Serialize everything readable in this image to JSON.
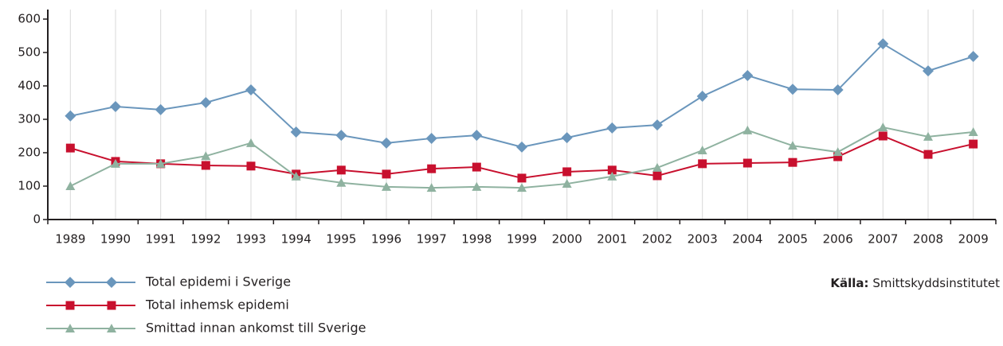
{
  "chart_data": {
    "type": "line",
    "categories": [
      "1989",
      "1990",
      "1991",
      "1992",
      "1993",
      "1994",
      "1995",
      "1996",
      "1997",
      "1998",
      "1999",
      "2000",
      "2001",
      "2002",
      "2003",
      "2004",
      "2005",
      "2006",
      "2007",
      "2008",
      "2009"
    ],
    "series": [
      {
        "name": "Total epidemi i Sverige",
        "color": "#6a96bc",
        "marker": "diamond",
        "values": [
          310,
          338,
          329,
          350,
          388,
          262,
          252,
          229,
          243,
          252,
          217,
          245,
          274,
          283,
          369,
          431,
          390,
          388,
          526,
          445,
          488
        ]
      },
      {
        "name": "Total inhemsk epidemi",
        "color": "#c8102e",
        "marker": "square",
        "values": [
          214,
          174,
          167,
          162,
          160,
          136,
          148,
          136,
          152,
          157,
          124,
          143,
          148,
          131,
          167,
          169,
          171,
          188,
          250,
          195,
          226
        ]
      },
      {
        "name": "Smittad innan ankomst till Sverige",
        "color": "#8fb2a0",
        "marker": "triangle",
        "values": [
          100,
          167,
          167,
          190,
          229,
          129,
          110,
          98,
          95,
          98,
          95,
          107,
          129,
          155,
          207,
          267,
          221,
          202,
          276,
          248,
          262
        ]
      }
    ],
    "ylim": [
      0,
      600
    ],
    "yticks": [
      0,
      100,
      200,
      300,
      400,
      500,
      600
    ],
    "grid": true,
    "source": {
      "label": "Källa:",
      "text": "Smittskyddsinstitutet"
    }
  }
}
